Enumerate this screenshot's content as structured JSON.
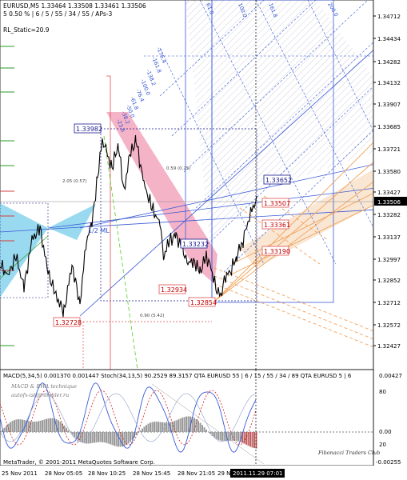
{
  "window": {
    "header_line1": "EURUSD,M5  1.33464 1.33508 1.33461 1.33506",
    "header_line2": "5  0.50 % | 6 / 5 / 55 / 34 / 55 / APs-3",
    "static_label": "RL_Static=20.9",
    "ml_label": "1/2 ML",
    "fib_205": "2.05 (0.57)",
    "fib_059": "0.59 (0.25)",
    "fib_090": "0.90 (5.42)",
    "current_price_tag": "1.33506"
  },
  "price_axis": [
    "1.34712",
    "1.34434",
    "1.34282",
    "1.34132",
    "1.33907",
    "1.33685",
    "1.33721",
    "1.33580",
    "1.33427",
    "1.33282",
    "1.33137",
    "1.32997",
    "1.32852",
    "1.32712",
    "1.32572",
    "1.32427"
  ],
  "price_boxes": {
    "blue": [
      "1.33982",
      "1.33652",
      "1.33232"
    ],
    "red": [
      "1.33507",
      "1.33361",
      "1.33190",
      "1.32934",
      "1.32854",
      "1.32728"
    ]
  },
  "fib_fan_labels": [
    "-176.4",
    "-161.8",
    "-138.2",
    "-100.0",
    "-76.4",
    "-61.8",
    "-50.0",
    "-38.2",
    "-23.6"
  ],
  "fan_top_labels": [
    "61.8",
    "100.0",
    "161.8",
    "200.0"
  ],
  "indicator": {
    "header": "MACD(5,34,5) 0.001370 0.001447  Stoch(34,13,5) 90.2529 89.3157  QTA EURUSD 55 | 6 / 15 / 55 / 34 / 89  QTA EURUSD 5 | 6",
    "desc1": "MACD & EWA technique",
    "desc2": "autofx-ist@rambler.ru",
    "axis": [
      "0.00427",
      "80",
      "0.00",
      "20",
      "-0.00255"
    ],
    "watermark": "Fibonacci Traders Club",
    "copyright": "MetaTrader, © 2001-2011 MetaQuotes Software Corp."
  },
  "time_axis": [
    "25 Nov 2011",
    "28 Nov 05:05",
    "28 Nov 10:25",
    "28 Nov 15:45",
    "28 Nov 21:05",
    "29 N"
  ],
  "time_cursor": "2011.11.29 07:01",
  "colors": {
    "bull_fan": "#f2a25a",
    "pink_zone": "#f29ab5",
    "cyan_zone": "#8fd6ee",
    "grid_blue": "#3b5bd6",
    "red_box": "#e05050"
  }
}
